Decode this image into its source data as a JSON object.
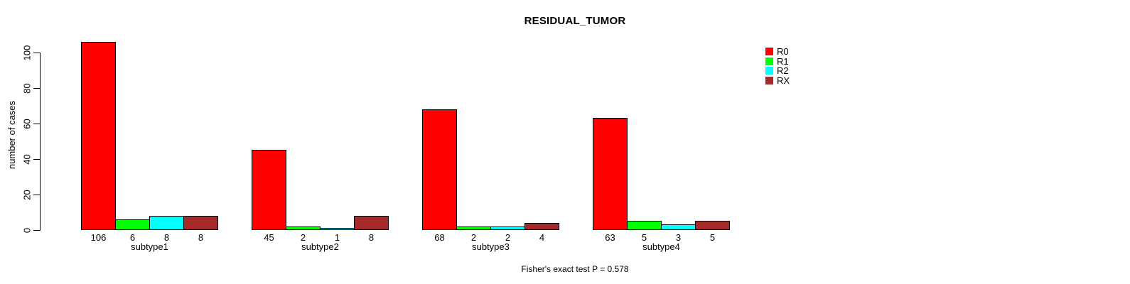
{
  "chart_data": {
    "type": "bar",
    "title": "RESIDUAL_TUMOR",
    "ylabel": "number of cases",
    "xlabel": "",
    "categories": [
      "subtype1",
      "subtype2",
      "subtype3",
      "subtype4"
    ],
    "series": [
      {
        "name": "R0",
        "color": "#FF0000",
        "values": [
          106,
          45,
          68,
          63
        ]
      },
      {
        "name": "R1",
        "color": "#00FF00",
        "values": [
          6,
          2,
          2,
          5
        ]
      },
      {
        "name": "R2",
        "color": "#00FFFF",
        "values": [
          8,
          1,
          2,
          3
        ]
      },
      {
        "name": "RX",
        "color": "#A52A2A",
        "values": [
          8,
          8,
          4,
          5
        ]
      }
    ],
    "yticks": [
      0,
      20,
      40,
      60,
      80,
      100
    ],
    "ylim": [
      0,
      106
    ],
    "grid": false,
    "legend_position": "top-right",
    "bar_value_labels_shown": true,
    "annotation": "Fisher's exact test P = 0.578"
  },
  "colors": {
    "background": "#FFFFFF",
    "axis": "#000000",
    "text": "#000000"
  }
}
